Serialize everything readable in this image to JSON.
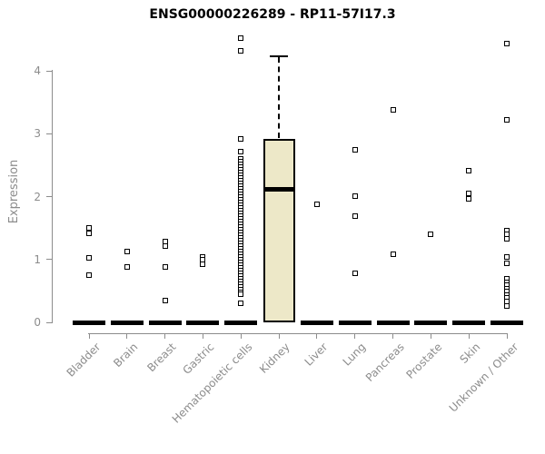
{
  "title": "ENSG00000226289 - RP11-57I17.3",
  "y_axis": {
    "label": "Expression",
    "ticks": [
      0,
      1,
      2,
      3,
      4
    ]
  },
  "colors": {
    "axis": "#8c8c8c",
    "title_text": "#000000",
    "box_fill": "#EDE8C8",
    "box_border": "#000000",
    "point_fill": "#ffffff",
    "point_border": "#000000"
  },
  "chart_data": {
    "type": "box",
    "title": "ENSG00000226289 - RP11-57I17.3",
    "xlabel": "",
    "ylabel": "Expression",
    "ylim": [
      0,
      4.6
    ],
    "grid": false,
    "legend": "none",
    "categories": [
      "Bladder",
      "Brain",
      "Breast",
      "Gastric",
      "Hematopoietic cells",
      "Kidney",
      "Liver",
      "Lung",
      "Pancreas",
      "Prostate",
      "Skin",
      "Unknown / Other"
    ],
    "series": [
      {
        "category": "Bladder",
        "box": {
          "low": 0,
          "q1": 0,
          "median": 0,
          "q3": 0,
          "high": 0
        },
        "outliers": [
          1.5,
          1.41,
          1.02,
          0.75
        ]
      },
      {
        "category": "Brain",
        "box": {
          "low": 0,
          "q1": 0,
          "median": 0,
          "q3": 0,
          "high": 0
        },
        "outliers": [
          1.13,
          0.88
        ]
      },
      {
        "category": "Breast",
        "box": {
          "low": 0,
          "q1": 0,
          "median": 0,
          "q3": 0,
          "high": 0
        },
        "outliers": [
          1.29,
          1.22,
          0.88,
          0.35
        ]
      },
      {
        "category": "Gastric",
        "box": {
          "low": 0,
          "q1": 0,
          "median": 0,
          "q3": 0,
          "high": 0
        },
        "outliers": [
          1.04,
          0.99,
          0.92
        ]
      },
      {
        "category": "Hematopoietic cells",
        "box": {
          "low": 0,
          "q1": 0,
          "median": 0,
          "q3": 0,
          "high": 0
        },
        "outliers": [
          4.52,
          4.32,
          2.92,
          2.72,
          2.6,
          2.56,
          2.51,
          2.47,
          2.43,
          2.38,
          2.34,
          2.3,
          2.25,
          2.21,
          2.17,
          2.12,
          2.08,
          2.04,
          1.99,
          1.95,
          1.91,
          1.86,
          1.82,
          1.78,
          1.73,
          1.69,
          1.65,
          1.6,
          1.56,
          1.52,
          1.47,
          1.43,
          1.39,
          1.34,
          1.3,
          1.26,
          1.21,
          1.17,
          1.13,
          1.08,
          1.04,
          1.0,
          0.95,
          0.91,
          0.87,
          0.82,
          0.78,
          0.74,
          0.69,
          0.65,
          0.61,
          0.56,
          0.52,
          0.48,
          0.45,
          0.31
        ]
      },
      {
        "category": "Kidney",
        "box": {
          "low": 0,
          "q1": 0,
          "median": 2.11,
          "q3": 2.92,
          "high": 4.23
        },
        "outliers": []
      },
      {
        "category": "Liver",
        "box": {
          "low": 0,
          "q1": 0,
          "median": 0,
          "q3": 0,
          "high": 0
        },
        "outliers": [
          1.88
        ]
      },
      {
        "category": "Lung",
        "box": {
          "low": 0,
          "q1": 0,
          "median": 0,
          "q3": 0,
          "high": 0
        },
        "outliers": [
          2.74,
          2.01,
          1.69,
          0.78
        ]
      },
      {
        "category": "Pancreas",
        "box": {
          "low": 0,
          "q1": 0,
          "median": 0,
          "q3": 0,
          "high": 0
        },
        "outliers": [
          3.38,
          1.08
        ]
      },
      {
        "category": "Prostate",
        "box": {
          "low": 0,
          "q1": 0,
          "median": 0,
          "q3": 0,
          "high": 0
        },
        "outliers": [
          1.4
        ]
      },
      {
        "category": "Skin",
        "box": {
          "low": 0,
          "q1": 0,
          "median": 0,
          "q3": 0,
          "high": 0
        },
        "outliers": [
          2.41,
          2.05,
          1.96
        ]
      },
      {
        "category": "Unknown / Other",
        "box": {
          "low": 0,
          "q1": 0,
          "median": 0,
          "q3": 0,
          "high": 0
        },
        "outliers": [
          4.44,
          3.22,
          1.46,
          1.4,
          1.33,
          1.04,
          0.94,
          0.69,
          0.64,
          0.59,
          0.54,
          0.49,
          0.44,
          0.39,
          0.33,
          0.26
        ]
      }
    ]
  }
}
